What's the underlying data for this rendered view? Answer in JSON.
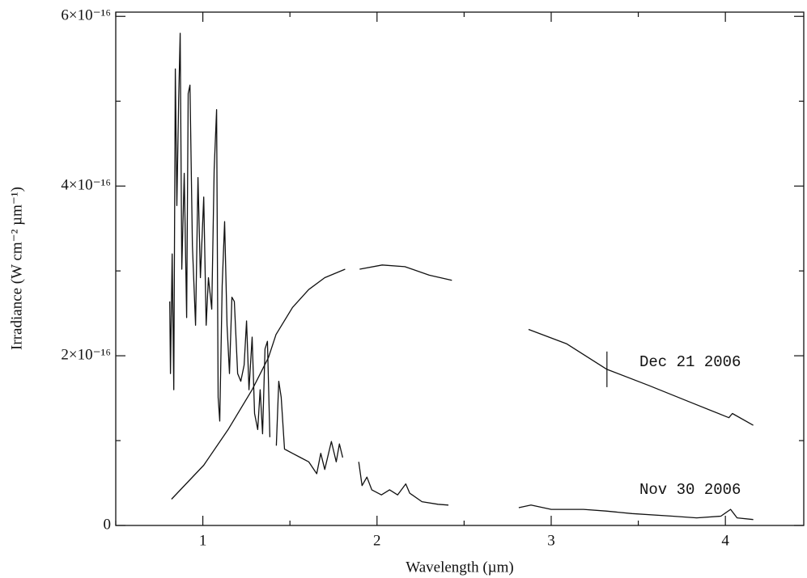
{
  "chart_data": {
    "type": "line",
    "xlabel": "Wavelength (µm)",
    "ylabel": "Irradiance (W cm⁻² µm⁻¹)",
    "xlim": [
      0.5,
      4.45
    ],
    "ylim": [
      0,
      6.05e-16
    ],
    "xticks": [
      1,
      2,
      3,
      4
    ],
    "xminorticks": [
      0.5,
      1.5,
      2.5,
      3.5
    ],
    "yticks": [
      {
        "value": 0,
        "label": "0"
      },
      {
        "value": 2e-16,
        "label": "2×10⁻¹⁶"
      },
      {
        "value": 4e-16,
        "label": "4×10⁻¹⁶"
      },
      {
        "value": 6e-16,
        "label": "6×10⁻¹⁶"
      }
    ],
    "yminorticks": [
      1e-16,
      3e-16,
      5e-16
    ],
    "annotations": [
      "Dec 21 2006",
      "Nov 30 2006"
    ],
    "error_bar": {
      "x": 3.32,
      "value": 1.84e-16,
      "error": 2.1e-17
    },
    "series": [
      {
        "name": "Dec 21 2006",
        "color": "#111111",
        "x": [
          0.82,
          1.005,
          1.145,
          1.283,
          1.377,
          1.42,
          1.515,
          1.608,
          1.7,
          1.817,
          1.85,
          1.9,
          2.03,
          2.16,
          2.3,
          2.43,
          2.6,
          2.87,
          3.09,
          3.32,
          3.56,
          3.79,
          4.02,
          4.04,
          4.16
        ],
        "values": [
          3.1e-17,
          7.1e-17,
          1.13e-16,
          1.6e-16,
          1.98e-16,
          2.25e-16,
          2.57e-16,
          2.78e-16,
          2.92e-16,
          3.02e-16,
          null,
          3.02e-16,
          3.07e-16,
          3.05e-16,
          2.95e-16,
          2.89e-16,
          null,
          2.31e-16,
          2.14e-16,
          1.84e-16,
          1.65e-16,
          1.46e-16,
          1.27e-16,
          1.32e-16,
          1.18e-16
        ]
      },
      {
        "name": "Nov 30 2006",
        "color": "#111111",
        "x": [
          0.81,
          0.814,
          0.824,
          0.833,
          0.842,
          0.851,
          0.861,
          0.87,
          0.879,
          0.893,
          0.907,
          0.916,
          0.926,
          0.94,
          0.958,
          0.972,
          0.986,
          1.005,
          1.019,
          1.032,
          1.051,
          1.065,
          1.079,
          1.088,
          1.097,
          1.111,
          1.125,
          1.139,
          1.153,
          1.167,
          1.181,
          1.2,
          1.218,
          1.237,
          1.251,
          1.265,
          1.283,
          1.297,
          1.315,
          1.329,
          1.343,
          1.357,
          1.371,
          1.385,
          1.4,
          1.422,
          1.436,
          1.45,
          1.469,
          1.515,
          1.561,
          1.608,
          1.654,
          1.677,
          1.7,
          1.738,
          1.766,
          1.784,
          1.803,
          1.85,
          1.895,
          1.914,
          1.942,
          1.97,
          2.025,
          2.072,
          2.118,
          2.165,
          2.188,
          2.258,
          2.35,
          2.41,
          2.6,
          2.814,
          2.884,
          3.0,
          3.185,
          3.315,
          3.464,
          3.696,
          3.835,
          3.974,
          4.03,
          4.067,
          4.16
        ],
        "values": [
          2.64e-16,
          1.79e-16,
          3.2e-16,
          1.6e-16,
          5.38e-16,
          3.77e-16,
          5e-16,
          5.8e-16,
          3.02e-16,
          4.15e-16,
          2.45e-16,
          5.09e-16,
          5.19e-16,
          3.3e-16,
          2.36e-16,
          4.1e-16,
          2.92e-16,
          3.87e-16,
          2.36e-16,
          2.92e-16,
          2.55e-16,
          4.2e-16,
          4.9e-16,
          1.51e-16,
          1.23e-16,
          2.83e-16,
          3.58e-16,
          2.36e-16,
          1.79e-16,
          2.69e-16,
          2.64e-16,
          1.79e-16,
          1.7e-16,
          1.89e-16,
          2.41e-16,
          1.6e-16,
          2.22e-16,
          1.32e-16,
          1.13e-16,
          1.6e-16,
          1.08e-16,
          2.08e-16,
          2.17e-16,
          1.04e-16,
          null,
          9.4e-17,
          1.7e-16,
          1.51e-16,
          9e-17,
          8.5e-17,
          8e-17,
          7.5e-17,
          6.1e-17,
          8.5e-17,
          6.6e-17,
          9.9e-17,
          7.5e-17,
          9.6e-17,
          8e-17,
          null,
          7.5e-17,
          4.7e-17,
          5.7e-17,
          4.2e-17,
          3.6e-17,
          4.2e-17,
          3.6e-17,
          4.9e-17,
          3.8e-17,
          2.8e-17,
          2.5e-17,
          2.4e-17,
          null,
          2.1e-17,
          2.4e-17,
          1.9e-17,
          1.9e-17,
          1.7e-17,
          1.4e-17,
          1.1e-17,
          9e-18,
          1.1e-17,
          1.9e-17,
          9e-18,
          7e-18
        ]
      }
    ]
  }
}
